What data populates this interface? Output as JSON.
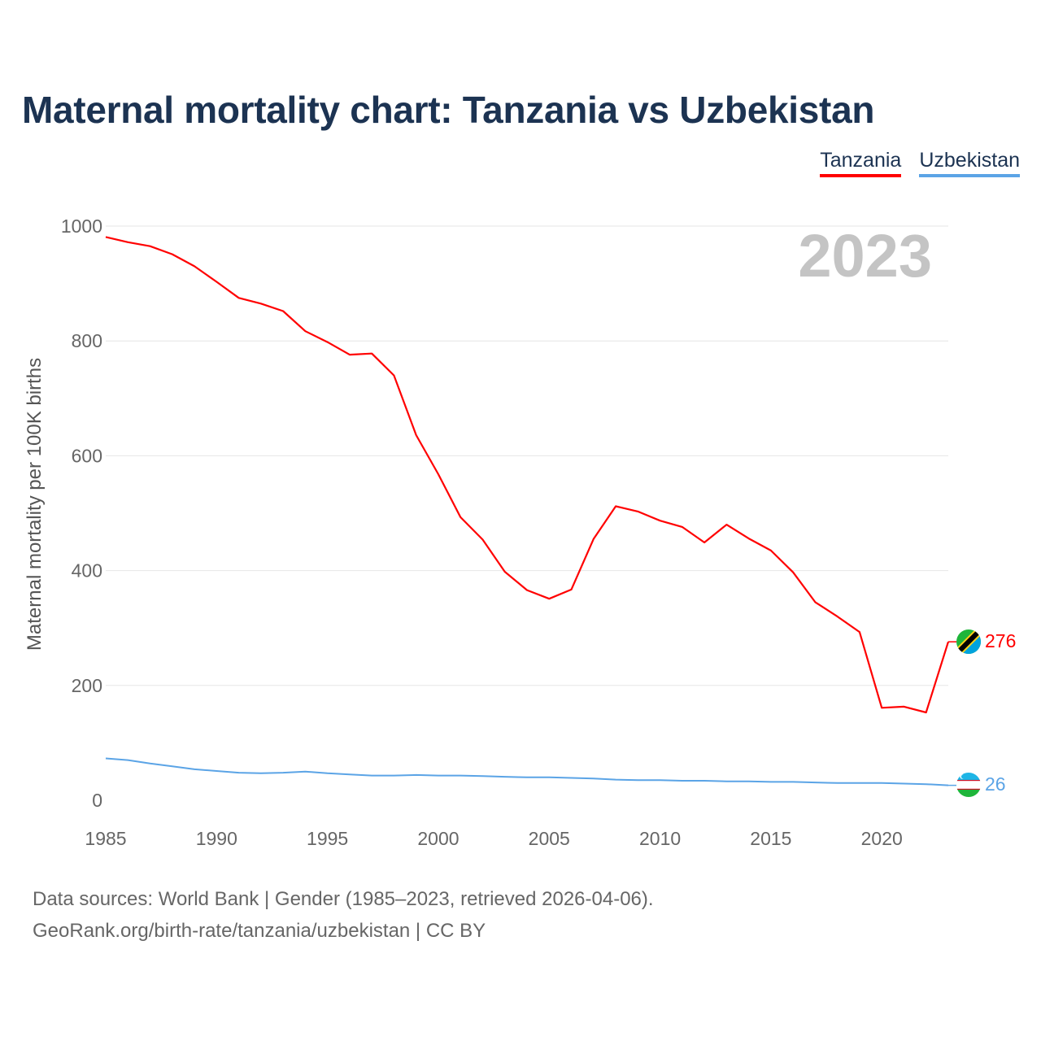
{
  "title": "Maternal mortality chart: Tanzania vs Uzbekistan",
  "legend": [
    "Tanzania",
    "Uzbekistan"
  ],
  "year_label": "2023",
  "source_line1": "Data sources: World Bank | Gender (1985–2023, retrieved 2026-04-06).",
  "source_line2": "GeoRank.org/birth-rate/tanzania/uzbekistan | CC BY",
  "colors": {
    "tanzania": "#ff0000",
    "uzbekistan": "#5ba4e6",
    "grid": "#e6e6e6",
    "title": "#1c3352"
  },
  "chart_data": {
    "type": "line",
    "title": "Maternal mortality chart: Tanzania vs Uzbekistan",
    "xlabel": "",
    "ylabel": "Maternal mortality per 100K births",
    "xlim": [
      1985,
      2023
    ],
    "ylim": [
      0,
      1000
    ],
    "xticks": [
      1985,
      1990,
      1995,
      2000,
      2005,
      2010,
      2015,
      2020
    ],
    "yticks": [
      0,
      200,
      400,
      600,
      800,
      1000
    ],
    "grid": true,
    "legend_position": "top-right",
    "x": [
      1985,
      1986,
      1987,
      1988,
      1989,
      1990,
      1991,
      1992,
      1993,
      1994,
      1995,
      1996,
      1997,
      1998,
      1999,
      2000,
      2001,
      2002,
      2003,
      2004,
      2005,
      2006,
      2007,
      2008,
      2009,
      2010,
      2011,
      2012,
      2013,
      2014,
      2015,
      2016,
      2017,
      2018,
      2019,
      2020,
      2021,
      2022,
      2023
    ],
    "series": [
      {
        "name": "Tanzania",
        "color": "#ff0000",
        "end_label": "276",
        "values": [
          981,
          972,
          965,
          951,
          930,
          903,
          875,
          865,
          852,
          817,
          798,
          776,
          778,
          740,
          636,
          568,
          493,
          454,
          398,
          366,
          351,
          367,
          455,
          512,
          503,
          487,
          476,
          449,
          480,
          456,
          435,
          397,
          345,
          320,
          293,
          161,
          163,
          153,
          276
        ]
      },
      {
        "name": "Uzbekistan",
        "color": "#5ba4e6",
        "end_label": "26",
        "values": [
          73,
          70,
          64,
          59,
          54,
          51,
          48,
          47,
          48,
          50,
          47,
          45,
          43,
          43,
          44,
          43,
          43,
          42,
          41,
          40,
          40,
          39,
          38,
          36,
          35,
          35,
          34,
          34,
          33,
          33,
          32,
          32,
          31,
          30,
          30,
          30,
          29,
          28,
          26
        ]
      }
    ]
  }
}
